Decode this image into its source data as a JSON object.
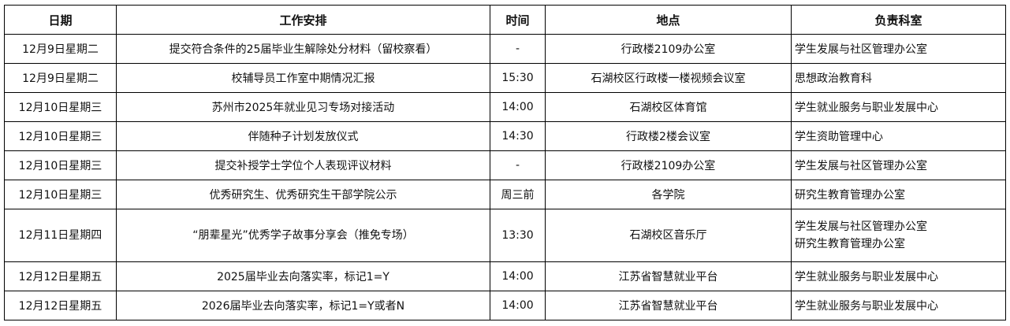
{
  "headers": [
    "日期",
    "工作安排",
    "时间",
    "地点",
    "负责科室"
  ],
  "rows": [
    {
      "date": "12月9日星期二",
      "task": "提交符合条件的25届毕业生解除处分材料（留校察看）",
      "time": "-",
      "place": "行政楼2109办公室",
      "dept": [
        "学生发展与社区管理办公室"
      ]
    },
    {
      "date": "12月9日星期二",
      "task": "校辅导员工作室中期情况汇报",
      "time": "15:30",
      "place": "石湖校区行政楼一楼视频会议室",
      "dept": [
        "思想政治教育科"
      ]
    },
    {
      "date": "12月10日星期三",
      "task": "苏州市2025年就业见习专场对接活动",
      "time": "14:00",
      "place": "石湖校区体育馆",
      "dept": [
        "学生就业服务与职业发展中心"
      ]
    },
    {
      "date": "12月10日星期三",
      "task": "伴随种子计划发放仪式",
      "time": "14:30",
      "place": "行政楼2楼会议室",
      "dept": [
        "学生资助管理中心"
      ]
    },
    {
      "date": "12月10日星期三",
      "task": "提交补授学士学位个人表现评议材料",
      "time": "-",
      "place": "行政楼2109办公室",
      "dept": [
        "学生发展与社区管理办公室"
      ]
    },
    {
      "date": "12月10日星期三",
      "task": "优秀研究生、优秀研究生干部学院公示",
      "time": "周三前",
      "place": "各学院",
      "dept": [
        "研究生教育管理办公室"
      ]
    },
    {
      "date": "12月11日星期四",
      "task": "“朋辈星光”优秀学子故事分享会（推免专场）",
      "time": "13:30",
      "place": "石湖校区音乐厅",
      "dept": [
        "学生发展与社区管理办公室",
        "研究生教育管理办公室"
      ]
    },
    {
      "date": "12月12日星期五",
      "task": "2025届毕业去向落实率，标记1=Y",
      "time": "14:00",
      "place": "江苏省智慧就业平台",
      "dept": [
        "学生就业服务与职业发展中心"
      ]
    },
    {
      "date": "12月12日星期五",
      "task": "2026届毕业去向落实率，标记1=Y或者N",
      "time": "14:00",
      "place": "江苏省智慧就业平台",
      "dept": [
        "学生就业服务与职业发展中心"
      ]
    }
  ]
}
